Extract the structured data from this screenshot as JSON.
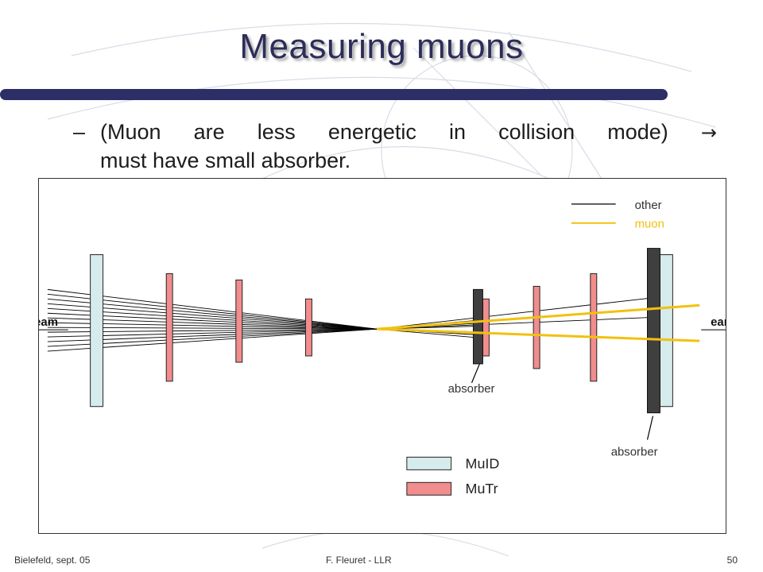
{
  "slide": {
    "title": "Measuring muons",
    "bullet": {
      "dash": "–",
      "line1_text": "(Muon are less energetic in collision mode)",
      "arrow_glyph": "→",
      "line2_text": "must have small absorber."
    },
    "footer": {
      "left": "Bielefeld, sept. 05",
      "center": "F. Fleuret - LLR",
      "page": "50"
    }
  },
  "diagram": {
    "colors": {
      "muid_fill": "#d6ebeb",
      "mutr_fill": "#f18d8d",
      "absorber_fill": "#3f3f3f",
      "muon_line": "#f2c10f",
      "other_line": "#000000"
    },
    "legend_lines": {
      "other": "other",
      "muon": "muon"
    },
    "legend_boxes": {
      "muid": "MuID",
      "mutr": "MuTr"
    },
    "labels": {
      "beam_left": "beam",
      "beam_right": "eam",
      "absorber_small": "absorber",
      "absorber_large": "absorber"
    }
  }
}
